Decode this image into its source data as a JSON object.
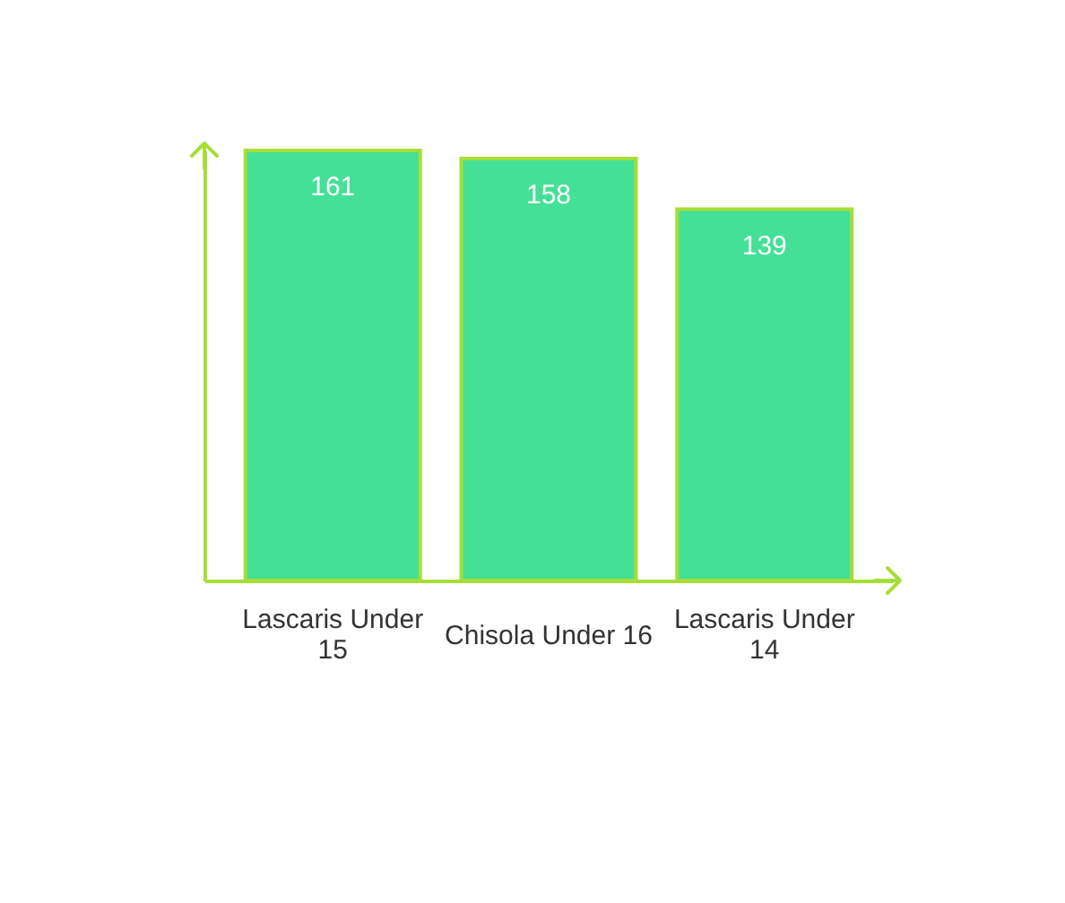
{
  "chart_data": {
    "type": "bar",
    "categories": [
      "Lascaris Under 15",
      "Chisola Under 16",
      "Lascaris Under 14"
    ],
    "values": [
      161,
      158,
      139
    ],
    "color": "#44e095",
    "data_labels": true,
    "tick_labels": "x"
  }
}
